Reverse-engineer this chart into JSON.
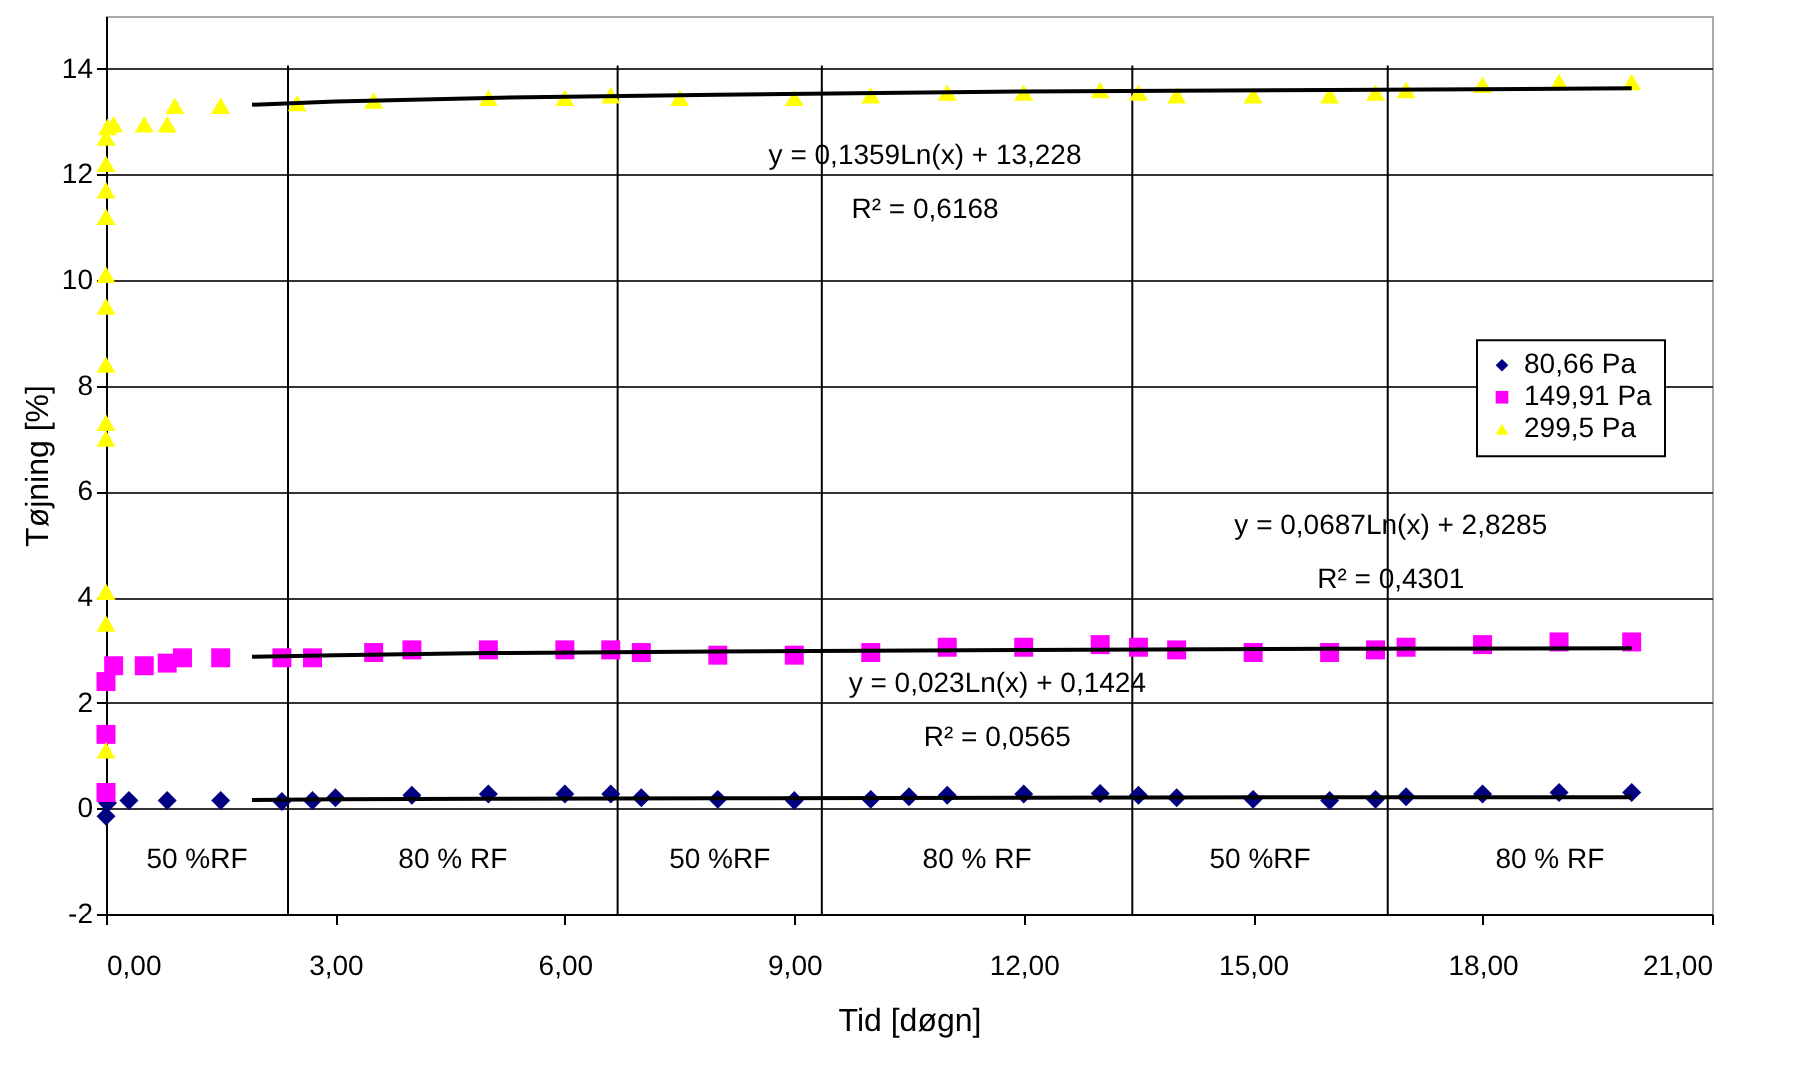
{
  "chart_data": {
    "type": "scatter",
    "xlabel": "Tid [døgn]",
    "ylabel": "Tøjning [%]",
    "xlim": [
      0,
      21
    ],
    "ylim": [
      -2,
      15
    ],
    "xticks": [
      {
        "value": 0,
        "label": "0,00"
      },
      {
        "value": 3,
        "label": "3,00"
      },
      {
        "value": 6,
        "label": "6,00"
      },
      {
        "value": 9,
        "label": "9,00"
      },
      {
        "value": 12,
        "label": "12,00"
      },
      {
        "value": 15,
        "label": "15,00"
      },
      {
        "value": 18,
        "label": "18,00"
      },
      {
        "value": 21,
        "label": "21,00"
      }
    ],
    "yticks": [
      -2,
      0,
      2,
      4,
      6,
      8,
      10,
      12,
      14
    ],
    "grid": "y",
    "legend": "right",
    "series": [
      {
        "name": "80,66 Pa",
        "color": "#000080",
        "marker": "diamond",
        "x": [
          0,
          0.02,
          0.3,
          0.8,
          1.5,
          2.3,
          2.7,
          3.0,
          4,
          5,
          6,
          6.6,
          7.0,
          8,
          9,
          10,
          10.5,
          11,
          12,
          13,
          13.5,
          14,
          15,
          16,
          16.6,
          17,
          18,
          19,
          19.95
        ],
        "values": [
          -0.15,
          0.1,
          0.15,
          0.15,
          0.15,
          0.13,
          0.15,
          0.2,
          0.25,
          0.27,
          0.27,
          0.27,
          0.2,
          0.17,
          0.15,
          0.17,
          0.22,
          0.25,
          0.27,
          0.28,
          0.25,
          0.2,
          0.17,
          0.15,
          0.17,
          0.22,
          0.27,
          0.3,
          0.3
        ]
      },
      {
        "name": "149,91 Pa",
        "color": "#ff00ff",
        "marker": "square",
        "x": [
          0,
          0,
          0,
          0.1,
          0.5,
          0.8,
          1.0,
          1.5,
          2.3,
          2.7,
          3.5,
          4,
          5,
          6,
          6.6,
          7.0,
          8,
          9,
          10,
          11,
          12,
          13,
          13.5,
          14,
          15,
          16,
          16.6,
          17,
          18,
          19,
          19.95
        ],
        "values": [
          0.3,
          1.4,
          2.4,
          2.7,
          2.7,
          2.75,
          2.85,
          2.85,
          2.85,
          2.85,
          2.95,
          3.0,
          3.0,
          3.0,
          3.0,
          2.95,
          2.9,
          2.9,
          2.95,
          3.05,
          3.05,
          3.1,
          3.05,
          3.0,
          2.95,
          2.95,
          3.0,
          3.05,
          3.1,
          3.15,
          3.15
        ]
      },
      {
        "name": "299,5 Pa",
        "color": "#ffff00",
        "marker": "triangle",
        "x": [
          0,
          0,
          0,
          0,
          0,
          0,
          0,
          0,
          0,
          0,
          0,
          0,
          0.02,
          0.1,
          0.5,
          0.8,
          0.9,
          1.5,
          2.5,
          3.5,
          5,
          6,
          6.6,
          7.5,
          9,
          10,
          11,
          12,
          13,
          13.5,
          14,
          15,
          16,
          16.6,
          17,
          18,
          19,
          19.95
        ],
        "values": [
          1.1,
          3.5,
          4.1,
          7.0,
          7.3,
          8.4,
          9.5,
          10.1,
          11.2,
          11.7,
          12.2,
          12.7,
          12.9,
          12.95,
          12.95,
          12.95,
          13.3,
          13.3,
          13.35,
          13.4,
          13.45,
          13.45,
          13.5,
          13.45,
          13.45,
          13.5,
          13.55,
          13.55,
          13.6,
          13.55,
          13.5,
          13.5,
          13.5,
          13.55,
          13.6,
          13.7,
          13.75,
          13.75
        ]
      },
      {
        "type": "line",
        "color": "#000000",
        "x": [
          1.91,
          3,
          5,
          8,
          12,
          16,
          19.95
        ],
        "values": [
          0.16,
          0.17,
          0.18,
          0.19,
          0.2,
          0.21,
          0.21
        ]
      },
      {
        "type": "line",
        "color": "#000000",
        "x": [
          1.91,
          3,
          5,
          8,
          12,
          16,
          19.95
        ],
        "values": [
          2.87,
          2.9,
          2.94,
          2.97,
          3.0,
          3.02,
          3.03
        ]
      },
      {
        "type": "line",
        "color": "#000000",
        "x": [
          1.91,
          3,
          5,
          8,
          12,
          16,
          19.95
        ],
        "values": [
          13.32,
          13.38,
          13.45,
          13.51,
          13.57,
          13.6,
          13.63
        ]
      }
    ],
    "ref_lines": [
      {
        "axis": "x",
        "value": 2.38,
        "color": "#000000"
      },
      {
        "axis": "x",
        "value": 6.69,
        "color": "#000000"
      },
      {
        "axis": "x",
        "value": 9.36,
        "color": "#000000"
      },
      {
        "axis": "x",
        "value": 13.42,
        "color": "#000000"
      },
      {
        "axis": "x",
        "value": 16.76,
        "color": "#000000"
      }
    ],
    "annotations": [
      "y = 0,1359Ln(x) + 13,228\nR² = 0,6168",
      "y = 0,0687Ln(x) + 2,8285\nR² = 0,4301",
      "y = 0,023Ln(x) + 0,1424\nR² = 0,0565",
      "50 %RF",
      "80 % RF",
      "50 %RF",
      "80 % RF",
      "50 %RF",
      "80 % RF"
    ]
  }
}
